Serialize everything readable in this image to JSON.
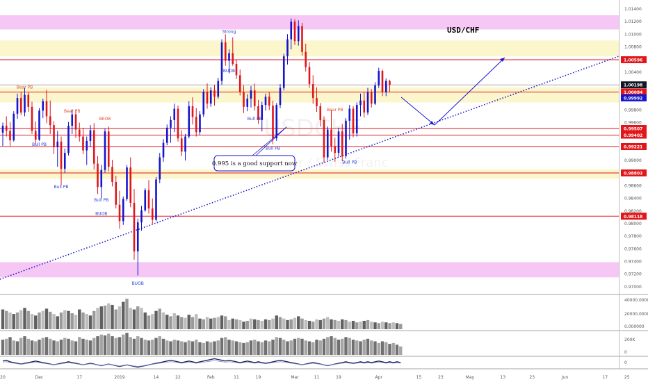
{
  "chart_data": {
    "type": "candlestick",
    "title": "USD/CHF",
    "watermark": "USDCHF",
    "watermark_sub": "U.S. Dollar / Swiss Franc",
    "colors": {
      "up": "#1515cc",
      "down": "#e0161b",
      "level_line": "#e0161b",
      "pink_zone": "#f6c3f4",
      "yellow_zone": "#fbf5c8",
      "trendline": "#1515cc"
    },
    "price_axis": {
      "ylim": [
        0.969,
        1.0152
      ],
      "ticks": [
        "1.01400",
        "1.01200",
        "1.01000",
        "1.00800",
        "1.00400",
        "1.00200",
        "1.00000",
        "0.99800",
        "0.99600",
        "0.99400",
        "0.99200",
        "0.99000",
        "0.98800",
        "0.98600",
        "0.98400",
        "0.98200",
        "0.98000",
        "0.97800",
        "0.97600",
        "0.97400",
        "0.97200",
        "0.97000"
      ]
    },
    "time_axis": {
      "ticks": [
        {
          "label": "20",
          "i": 0
        },
        {
          "label": "Dec",
          "i": 10
        },
        {
          "label": "17",
          "i": 21
        },
        {
          "label": "2019",
          "i": 32
        },
        {
          "label": "14",
          "i": 42
        },
        {
          "label": "22",
          "i": 48
        },
        {
          "label": "Feb",
          "i": 57
        },
        {
          "label": "11",
          "i": 64
        },
        {
          "label": "19",
          "i": 70
        },
        {
          "label": "Mar",
          "i": 80
        },
        {
          "label": "11",
          "i": 86
        },
        {
          "label": "19",
          "i": 92
        },
        {
          "label": "Apr",
          "i": 103
        },
        {
          "label": "15",
          "i": 114
        },
        {
          "label": "23",
          "i": 120
        },
        {
          "label": "May",
          "i": 128
        },
        {
          "label": "13",
          "i": 137
        },
        {
          "label": "23",
          "i": 145
        },
        {
          "label": "Jun",
          "i": 154
        },
        {
          "label": "17",
          "i": 165
        },
        {
          "label": "25",
          "i": 171
        }
      ]
    },
    "zones": [
      {
        "color": "pink",
        "from": 1.01075,
        "to": 1.013
      },
      {
        "color": "yellow",
        "from": 1.0065,
        "to": 1.009
      },
      {
        "color": "yellow",
        "from": 0.9992,
        "to": 1.0016
      },
      {
        "color": "yellow",
        "from": 0.9871,
        "to": 0.9886
      },
      {
        "color": "pink",
        "from": 0.9715,
        "to": 0.9739
      }
    ],
    "levels": [
      {
        "value": 1.00596,
        "label": "1.00596",
        "marker": "red"
      },
      {
        "value": 1.00084,
        "label": "1.00084",
        "marker": "red"
      },
      {
        "value": 0.99507,
        "label": "0.99507",
        "marker": "red"
      },
      {
        "value": 0.99402,
        "label": "0.99402",
        "marker": "red"
      },
      {
        "value": 0.99221,
        "label": "0.99221",
        "marker": "red"
      },
      {
        "value": 0.98803,
        "label": "0.98803",
        "marker": "red"
      },
      {
        "value": 0.98118,
        "label": "0.98118",
        "marker": "red"
      }
    ],
    "extra_markers": [
      {
        "value": 1.00198,
        "label": "1.00198",
        "color": "#131722"
      },
      {
        "value": 0.99992,
        "label": "0.99992",
        "color": "#1515cc"
      }
    ],
    "annotations": [
      {
        "text": "0.995 is a good support now",
        "i": 68,
        "price": 0.9904
      },
      {
        "text": "USD/CHF"
      }
    ],
    "signal_labels": [
      {
        "text": "Bear PB",
        "i": 6,
        "price": 1.0014,
        "color": "down"
      },
      {
        "text": "Bear PB",
        "i": 19,
        "price": 0.9976,
        "color": "down"
      },
      {
        "text": "BEOB",
        "i": 28,
        "price": 0.9964,
        "color": "down"
      },
      {
        "text": "Strong",
        "i": 62,
        "price": 1.0102,
        "color": "up"
      },
      {
        "text": "BUOB",
        "i": 62,
        "price": 1.004,
        "color": "up"
      },
      {
        "text": "Bear PB",
        "i": 91,
        "price": 0.9978,
        "color": "down"
      },
      {
        "text": "Bull PB",
        "i": 10,
        "price": 0.9923,
        "color": "up"
      },
      {
        "text": "Bull PB",
        "i": 16,
        "price": 0.9856,
        "color": "up"
      },
      {
        "text": "Bull PB",
        "i": 27,
        "price": 0.9835,
        "color": "up"
      },
      {
        "text": "BUOB",
        "i": 27,
        "price": 0.9814,
        "color": "up"
      },
      {
        "text": "Bull PB",
        "i": 69,
        "price": 0.9964,
        "color": "up"
      },
      {
        "text": "Bull PB",
        "i": 74,
        "price": 0.9917,
        "color": "up"
      },
      {
        "text": "Bull PB",
        "i": 95,
        "price": 0.9895,
        "color": "up"
      },
      {
        "text": "BUOB",
        "i": 37,
        "price": 0.9703,
        "color": "up"
      }
    ],
    "candles": [
      [
        0.9944,
        0.996,
        0.9923,
        0.9955
      ],
      [
        0.9955,
        0.997,
        0.9938,
        0.9947
      ],
      [
        0.9947,
        0.9961,
        0.9922,
        0.9932
      ],
      [
        0.9932,
        0.9978,
        0.993,
        0.9974
      ],
      [
        0.9974,
        1.0006,
        0.9966,
        0.9999
      ],
      [
        0.9999,
        1.0008,
        0.9972,
        0.9976
      ],
      [
        0.9976,
        1.0015,
        0.997,
        1.0004
      ],
      [
        1.0004,
        1.0009,
        0.9977,
        0.9985
      ],
      [
        0.9985,
        0.9993,
        0.9942,
        0.9947
      ],
      [
        0.9947,
        0.9962,
        0.9925,
        0.9933
      ],
      [
        0.9933,
        0.9983,
        0.9931,
        0.9979
      ],
      [
        0.9979,
        0.9998,
        0.9967,
        0.9994
      ],
      [
        0.9994,
        1.0012,
        0.9959,
        0.997
      ],
      [
        0.997,
        0.9995,
        0.9942,
        0.9956
      ],
      [
        0.9956,
        0.9962,
        0.991,
        0.9921
      ],
      [
        0.9921,
        0.9947,
        0.989,
        0.993
      ],
      [
        0.993,
        0.9938,
        0.9861,
        0.9887
      ],
      [
        0.9887,
        0.9919,
        0.988,
        0.9912
      ],
      [
        0.9912,
        0.9961,
        0.9908,
        0.9955
      ],
      [
        0.9955,
        0.9981,
        0.9942,
        0.9973
      ],
      [
        0.9973,
        0.998,
        0.9936,
        0.9949
      ],
      [
        0.9949,
        0.996,
        0.993,
        0.9938
      ],
      [
        0.9938,
        0.9952,
        0.991,
        0.9916
      ],
      [
        0.9916,
        0.9938,
        0.9893,
        0.9931
      ],
      [
        0.9931,
        0.9956,
        0.9921,
        0.9948
      ],
      [
        0.9948,
        0.9959,
        0.9886,
        0.9895
      ],
      [
        0.9895,
        0.9907,
        0.9847,
        0.9858
      ],
      [
        0.9858,
        0.9893,
        0.984,
        0.9885
      ],
      [
        0.9885,
        0.995,
        0.9881,
        0.9946
      ],
      [
        0.9946,
        0.9954,
        0.9883,
        0.989
      ],
      [
        0.989,
        0.9901,
        0.9859,
        0.9866
      ],
      [
        0.9866,
        0.9876,
        0.9824,
        0.983
      ],
      [
        0.983,
        0.9852,
        0.9792,
        0.9804
      ],
      [
        0.9804,
        0.9843,
        0.9798,
        0.9839
      ],
      [
        0.9839,
        0.9893,
        0.9836,
        0.9889
      ],
      [
        0.9889,
        0.9905,
        0.9826,
        0.9833
      ],
      [
        0.9833,
        0.9855,
        0.9743,
        0.9756
      ],
      [
        0.9756,
        0.9808,
        0.9718,
        0.9802
      ],
      [
        0.9802,
        0.9828,
        0.9789,
        0.9821
      ],
      [
        0.9821,
        0.9856,
        0.9819,
        0.9853
      ],
      [
        0.9853,
        0.9869,
        0.9816,
        0.9824
      ],
      [
        0.9824,
        0.984,
        0.98,
        0.9806
      ],
      [
        0.9806,
        0.9874,
        0.9804,
        0.987
      ],
      [
        0.987,
        0.9912,
        0.9864,
        0.9905
      ],
      [
        0.9905,
        0.9934,
        0.9898,
        0.9928
      ],
      [
        0.9928,
        0.9957,
        0.9924,
        0.9952
      ],
      [
        0.9952,
        0.997,
        0.9928,
        0.9964
      ],
      [
        0.9964,
        0.999,
        0.9945,
        0.9982
      ],
      [
        0.9982,
        0.9987,
        0.993,
        0.9935
      ],
      [
        0.9935,
        0.9948,
        0.9907,
        0.9914
      ],
      [
        0.9914,
        0.9942,
        0.99,
        0.9938
      ],
      [
        0.9938,
        0.9994,
        0.9935,
        0.9986
      ],
      [
        0.9986,
        1.0,
        0.9957,
        0.9969
      ],
      [
        0.9969,
        0.9983,
        0.9938,
        0.9945
      ],
      [
        0.9945,
        0.9978,
        0.9941,
        0.9973
      ],
      [
        0.9973,
        1.0013,
        0.9969,
        1.0009
      ],
      [
        1.0009,
        1.0022,
        0.9982,
        0.999
      ],
      [
        0.999,
        1.0016,
        0.9985,
        1.0011
      ],
      [
        1.0011,
        1.002,
        0.9987,
        1.0001
      ],
      [
        1.0001,
        1.0031,
        0.9998,
        1.0026
      ],
      [
        1.0026,
        1.0092,
        1.002,
        1.0087
      ],
      [
        1.0087,
        1.01,
        1.005,
        1.0058
      ],
      [
        1.0058,
        1.0076,
        1.0038,
        1.007
      ],
      [
        1.007,
        1.0095,
        1.005,
        1.0053
      ],
      [
        1.0053,
        1.006,
        1.0029,
        1.0035
      ],
      [
        1.0035,
        1.0044,
        1.0003,
        1.0008
      ],
      [
        1.0008,
        1.0019,
        0.9975,
        0.9985
      ],
      [
        0.9985,
        1.0005,
        0.9978,
        0.9998
      ],
      [
        0.9998,
        1.0018,
        0.9984,
        1.0011
      ],
      [
        1.0011,
        1.0022,
        0.9979,
        0.9986
      ],
      [
        0.9986,
        0.9996,
        0.9958,
        0.9964
      ],
      [
        0.9964,
        0.9993,
        0.9946,
        0.9988
      ],
      [
        0.9988,
        1.0006,
        0.9979,
        1.0001
      ],
      [
        1.0001,
        1.0009,
        0.998,
        0.9987
      ],
      [
        0.9987,
        0.9995,
        0.9926,
        0.9935
      ],
      [
        0.9935,
        0.9991,
        0.9931,
        0.9988
      ],
      [
        0.9988,
        1.0021,
        0.9983,
        1.0015
      ],
      [
        1.0015,
        1.0069,
        1.0011,
        1.0065
      ],
      [
        1.0065,
        1.01,
        1.0052,
        1.0092
      ],
      [
        1.0092,
        1.0125,
        1.0076,
        1.012
      ],
      [
        1.012,
        1.0124,
        1.0083,
        1.0089
      ],
      [
        1.0089,
        1.0122,
        1.0082,
        1.0113
      ],
      [
        1.0113,
        1.0118,
        1.0066,
        1.0072
      ],
      [
        1.0072,
        1.0085,
        1.0041,
        1.0048
      ],
      [
        1.0048,
        1.0056,
        1.0015,
        1.0021
      ],
      [
        1.0021,
        1.0035,
        0.999,
        0.9999
      ],
      [
        0.9999,
        1.0016,
        0.9977,
        0.9986
      ],
      [
        0.9986,
        0.9991,
        0.9954,
        0.9964
      ],
      [
        0.9964,
        0.997,
        0.9897,
        0.9905
      ],
      [
        0.9905,
        0.9954,
        0.9901,
        0.9949
      ],
      [
        0.9949,
        0.998,
        0.9914,
        0.9923
      ],
      [
        0.9923,
        0.9936,
        0.9898,
        0.9912
      ],
      [
        0.9912,
        0.9952,
        0.9906,
        0.9946
      ],
      [
        0.9946,
        0.9958,
        0.9899,
        0.9907
      ],
      [
        0.9907,
        0.9967,
        0.9903,
        0.9963
      ],
      [
        0.9963,
        0.9988,
        0.9933,
        0.9982
      ],
      [
        0.9982,
        0.9986,
        0.9937,
        0.9943
      ],
      [
        0.9943,
        0.9992,
        0.9938,
        0.9988
      ],
      [
        0.9988,
        1.0006,
        0.997,
        0.9995
      ],
      [
        0.9995,
        1.0008,
        0.9968,
        0.9976
      ],
      [
        0.9976,
        1.0015,
        0.9972,
        1.0008
      ],
      [
        1.0008,
        1.0013,
        0.9984,
        0.999
      ],
      [
        0.999,
        1.0024,
        0.9988,
        1.0019
      ],
      [
        1.0019,
        1.0047,
        1.0015,
        1.0042
      ],
      [
        1.0042,
        1.0044,
        1.0002,
        1.0008
      ],
      [
        1.0008,
        1.003,
        1.0002,
        1.0026
      ],
      [
        1.0026,
        1.0028,
        1.0009,
        1.00198
      ]
    ],
    "volume_axis": {
      "ticks": [
        "40000.000000",
        "20000.000000",
        "0.000000"
      ]
    },
    "volume2_axis": {
      "ticks": [
        "200K",
        "0"
      ]
    },
    "oscillator_axis": {
      "ticks": [
        "0"
      ]
    },
    "volume": [
      26,
      24,
      22,
      20,
      22,
      25,
      28,
      24,
      20,
      18,
      22,
      24,
      27,
      23,
      20,
      17,
      22,
      25,
      24,
      21,
      19,
      26,
      22,
      20,
      18,
      24,
      28,
      30,
      31,
      34,
      32,
      26,
      30,
      36,
      40,
      28,
      26,
      30,
      28,
      22,
      18,
      20,
      24,
      27,
      22,
      19,
      17,
      21,
      18,
      16,
      15,
      19,
      16,
      20,
      14,
      13,
      16,
      14,
      15,
      16,
      18,
      17,
      12,
      14,
      13,
      12,
      10,
      11,
      14,
      13,
      12,
      11,
      13,
      12,
      14,
      18,
      16,
      14,
      12,
      13,
      15,
      17,
      14,
      12,
      11,
      10,
      13,
      12,
      14,
      16,
      13,
      12,
      11,
      13,
      12,
      10,
      11,
      9,
      10,
      11,
      12,
      10,
      9,
      8,
      10,
      9,
      8,
      9,
      8,
      7
    ],
    "volume2": [
      18,
      19,
      21,
      17,
      16,
      20,
      22,
      19,
      17,
      16,
      18,
      20,
      21,
      19,
      17,
      16,
      18,
      20,
      19,
      17,
      16,
      21,
      19,
      18,
      17,
      20,
      22,
      24,
      23,
      25,
      22,
      20,
      21,
      24,
      26,
      21,
      19,
      22,
      20,
      18,
      17,
      18,
      20,
      22,
      19,
      17,
      16,
      18,
      17,
      16,
      15,
      17,
      16,
      18,
      15,
      14,
      16,
      15,
      16,
      17,
      20,
      21,
      18,
      17,
      16,
      15,
      14,
      15,
      17,
      18,
      16,
      15,
      17,
      16,
      18,
      21,
      20,
      18,
      16,
      17,
      19,
      20,
      19,
      17,
      16,
      15,
      18,
      17,
      19,
      21,
      22,
      20,
      18,
      19,
      21,
      20,
      18,
      17,
      16,
      18,
      19,
      17,
      16,
      14,
      16,
      15,
      13,
      14,
      12,
      10
    ],
    "oscillator": [
      2,
      3,
      1,
      0,
      -1,
      -2,
      -1,
      0,
      1,
      2,
      1,
      0,
      -1,
      -2,
      -3,
      -2,
      -1,
      0,
      1,
      0,
      -1,
      -2,
      -3,
      -2,
      -1,
      -2,
      -3,
      -4,
      -3,
      -2,
      -3,
      -4,
      -5,
      -4,
      -3,
      -4,
      -5,
      -6,
      -5,
      -4,
      -3,
      -2,
      -1,
      0,
      1,
      2,
      3,
      2,
      1,
      0,
      1,
      2,
      1,
      0,
      1,
      2,
      3,
      4,
      5,
      4,
      3,
      2,
      3,
      2,
      1,
      0,
      1,
      2,
      1,
      0,
      1,
      0,
      -1,
      0,
      1,
      2,
      3,
      2,
      1,
      0,
      -1,
      -2,
      -3,
      -2,
      -1,
      0,
      -1,
      -2,
      -3,
      -4,
      -3,
      -2,
      -1,
      0,
      1,
      0,
      -1,
      0,
      1,
      0,
      1,
      0,
      1,
      2,
      1,
      0,
      1,
      0,
      1,
      0
    ]
  }
}
